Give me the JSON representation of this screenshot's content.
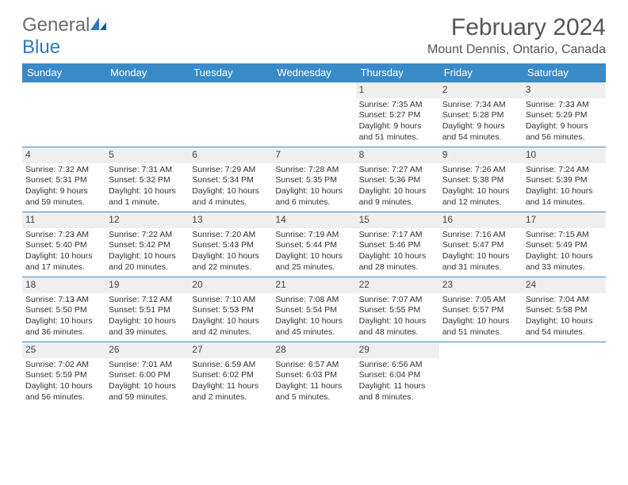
{
  "logo": {
    "word1": "General",
    "word2": "Blue"
  },
  "title": "February 2024",
  "location": "Mount Dennis, Ontario, Canada",
  "dayHeaders": [
    "Sunday",
    "Monday",
    "Tuesday",
    "Wednesday",
    "Thursday",
    "Friday",
    "Saturday"
  ],
  "colors": {
    "headerBg": "#3a8ac8",
    "headerText": "#ffffff",
    "dayNumBg": "#efefef",
    "border": "#3a8ac8",
    "titleText": "#555555",
    "bodyText": "#333333",
    "logoGray": "#6b6b6b",
    "logoBlue": "#2f7bbf"
  },
  "weeks": [
    [
      null,
      null,
      null,
      null,
      {
        "n": "1",
        "sunrise": "Sunrise: 7:35 AM",
        "sunset": "Sunset: 5:27 PM",
        "daylight": "Daylight: 9 hours and 51 minutes."
      },
      {
        "n": "2",
        "sunrise": "Sunrise: 7:34 AM",
        "sunset": "Sunset: 5:28 PM",
        "daylight": "Daylight: 9 hours and 54 minutes."
      },
      {
        "n": "3",
        "sunrise": "Sunrise: 7:33 AM",
        "sunset": "Sunset: 5:29 PM",
        "daylight": "Daylight: 9 hours and 56 minutes."
      }
    ],
    [
      {
        "n": "4",
        "sunrise": "Sunrise: 7:32 AM",
        "sunset": "Sunset: 5:31 PM",
        "daylight": "Daylight: 9 hours and 59 minutes."
      },
      {
        "n": "5",
        "sunrise": "Sunrise: 7:31 AM",
        "sunset": "Sunset: 5:32 PM",
        "daylight": "Daylight: 10 hours and 1 minute."
      },
      {
        "n": "6",
        "sunrise": "Sunrise: 7:29 AM",
        "sunset": "Sunset: 5:34 PM",
        "daylight": "Daylight: 10 hours and 4 minutes."
      },
      {
        "n": "7",
        "sunrise": "Sunrise: 7:28 AM",
        "sunset": "Sunset: 5:35 PM",
        "daylight": "Daylight: 10 hours and 6 minutes."
      },
      {
        "n": "8",
        "sunrise": "Sunrise: 7:27 AM",
        "sunset": "Sunset: 5:36 PM",
        "daylight": "Daylight: 10 hours and 9 minutes."
      },
      {
        "n": "9",
        "sunrise": "Sunrise: 7:26 AM",
        "sunset": "Sunset: 5:38 PM",
        "daylight": "Daylight: 10 hours and 12 minutes."
      },
      {
        "n": "10",
        "sunrise": "Sunrise: 7:24 AM",
        "sunset": "Sunset: 5:39 PM",
        "daylight": "Daylight: 10 hours and 14 minutes."
      }
    ],
    [
      {
        "n": "11",
        "sunrise": "Sunrise: 7:23 AM",
        "sunset": "Sunset: 5:40 PM",
        "daylight": "Daylight: 10 hours and 17 minutes."
      },
      {
        "n": "12",
        "sunrise": "Sunrise: 7:22 AM",
        "sunset": "Sunset: 5:42 PM",
        "daylight": "Daylight: 10 hours and 20 minutes."
      },
      {
        "n": "13",
        "sunrise": "Sunrise: 7:20 AM",
        "sunset": "Sunset: 5:43 PM",
        "daylight": "Daylight: 10 hours and 22 minutes."
      },
      {
        "n": "14",
        "sunrise": "Sunrise: 7:19 AM",
        "sunset": "Sunset: 5:44 PM",
        "daylight": "Daylight: 10 hours and 25 minutes."
      },
      {
        "n": "15",
        "sunrise": "Sunrise: 7:17 AM",
        "sunset": "Sunset: 5:46 PM",
        "daylight": "Daylight: 10 hours and 28 minutes."
      },
      {
        "n": "16",
        "sunrise": "Sunrise: 7:16 AM",
        "sunset": "Sunset: 5:47 PM",
        "daylight": "Daylight: 10 hours and 31 minutes."
      },
      {
        "n": "17",
        "sunrise": "Sunrise: 7:15 AM",
        "sunset": "Sunset: 5:49 PM",
        "daylight": "Daylight: 10 hours and 33 minutes."
      }
    ],
    [
      {
        "n": "18",
        "sunrise": "Sunrise: 7:13 AM",
        "sunset": "Sunset: 5:50 PM",
        "daylight": "Daylight: 10 hours and 36 minutes."
      },
      {
        "n": "19",
        "sunrise": "Sunrise: 7:12 AM",
        "sunset": "Sunset: 5:51 PM",
        "daylight": "Daylight: 10 hours and 39 minutes."
      },
      {
        "n": "20",
        "sunrise": "Sunrise: 7:10 AM",
        "sunset": "Sunset: 5:53 PM",
        "daylight": "Daylight: 10 hours and 42 minutes."
      },
      {
        "n": "21",
        "sunrise": "Sunrise: 7:08 AM",
        "sunset": "Sunset: 5:54 PM",
        "daylight": "Daylight: 10 hours and 45 minutes."
      },
      {
        "n": "22",
        "sunrise": "Sunrise: 7:07 AM",
        "sunset": "Sunset: 5:55 PM",
        "daylight": "Daylight: 10 hours and 48 minutes."
      },
      {
        "n": "23",
        "sunrise": "Sunrise: 7:05 AM",
        "sunset": "Sunset: 5:57 PM",
        "daylight": "Daylight: 10 hours and 51 minutes."
      },
      {
        "n": "24",
        "sunrise": "Sunrise: 7:04 AM",
        "sunset": "Sunset: 5:58 PM",
        "daylight": "Daylight: 10 hours and 54 minutes."
      }
    ],
    [
      {
        "n": "25",
        "sunrise": "Sunrise: 7:02 AM",
        "sunset": "Sunset: 5:59 PM",
        "daylight": "Daylight: 10 hours and 56 minutes."
      },
      {
        "n": "26",
        "sunrise": "Sunrise: 7:01 AM",
        "sunset": "Sunset: 6:00 PM",
        "daylight": "Daylight: 10 hours and 59 minutes."
      },
      {
        "n": "27",
        "sunrise": "Sunrise: 6:59 AM",
        "sunset": "Sunset: 6:02 PM",
        "daylight": "Daylight: 11 hours and 2 minutes."
      },
      {
        "n": "28",
        "sunrise": "Sunrise: 6:57 AM",
        "sunset": "Sunset: 6:03 PM",
        "daylight": "Daylight: 11 hours and 5 minutes."
      },
      {
        "n": "29",
        "sunrise": "Sunrise: 6:56 AM",
        "sunset": "Sunset: 6:04 PM",
        "daylight": "Daylight: 11 hours and 8 minutes."
      },
      null,
      null
    ]
  ]
}
